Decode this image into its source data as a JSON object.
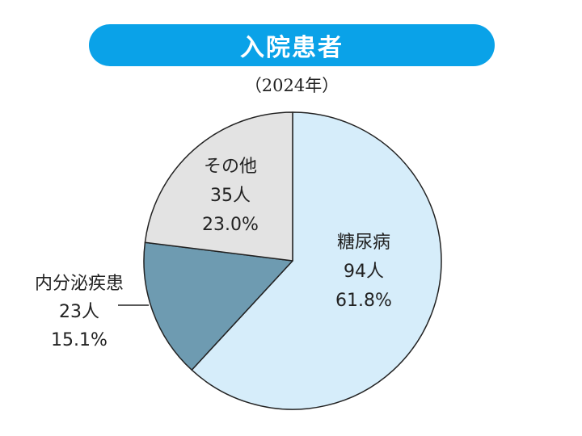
{
  "header": {
    "title": "入院患者",
    "subtitle": "（2024年）"
  },
  "chart_data": {
    "type": "pie",
    "start_angle_deg": 0,
    "direction": "clockwise",
    "slices": [
      {
        "label": "糖尿病",
        "count": "94人",
        "percent_label": "61.8%",
        "value": 61.8,
        "color": "#d6edfa"
      },
      {
        "label": "内分泌疾患",
        "count": "23人",
        "percent_label": "15.1%",
        "value": 15.1,
        "color": "#6e9bb1"
      },
      {
        "label": "その他",
        "count": "35人",
        "percent_label": "23.0%",
        "value": 23.0,
        "color": "#e3e3e3"
      }
    ]
  }
}
